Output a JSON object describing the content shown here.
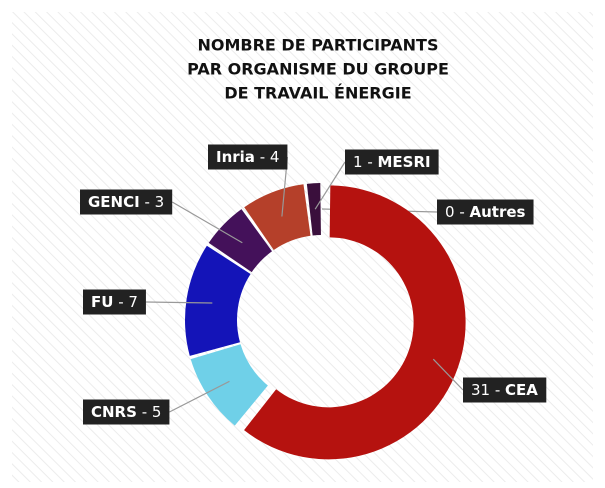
{
  "chart_data": {
    "type": "donut",
    "title": [
      "NOMBRE DE PARTICIPANTS",
      "PAR ORGANISME DU GROUPE",
      "DE TRAVAIL ÉNERGIE"
    ],
    "categories": [
      "Autres",
      "CEA",
      "CNRS",
      "FU",
      "GENCI",
      "Inria",
      "MESRI"
    ],
    "values": [
      0,
      31,
      5,
      7,
      3,
      4,
      1
    ],
    "colors": [
      "#888888",
      "#b5120f",
      "#6fd0e8",
      "#1414b8",
      "#44115a",
      "#b5402a",
      "#3a0f3c"
    ],
    "label_separator": " - "
  }
}
